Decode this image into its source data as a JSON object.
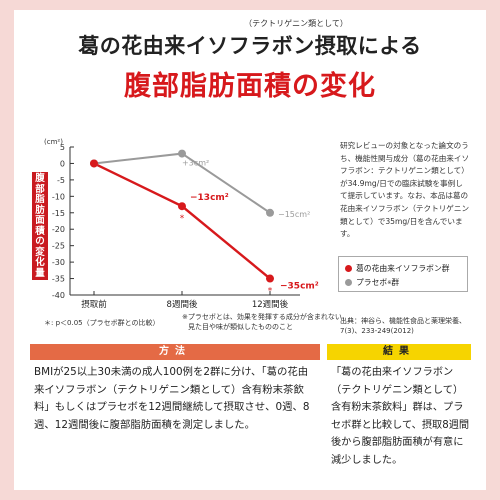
{
  "header": {
    "ruby": "（テクトリゲニン類として）",
    "title": "葛の花由来イソフラボン摂取による",
    "subtitle": "腹部脂肪面積の変化"
  },
  "chart_data": {
    "type": "line",
    "y_axis_title": "腹部脂肪面積の変化量",
    "y_unit": "(cm²)",
    "ylim": [
      -40,
      5
    ],
    "yticks": [
      5,
      0,
      -5,
      -10,
      -15,
      -20,
      -25,
      -30,
      -35,
      -40
    ],
    "categories": [
      "摂取前",
      "8週間後",
      "12週間後"
    ],
    "series": [
      {
        "name": "葛の花由来イソフラボン群",
        "color": "#d7191c",
        "values": [
          0,
          -13,
          -35
        ],
        "labels": [
          "",
          "−13cm²",
          "−35cm²"
        ],
        "markers": [
          "",
          "*",
          "*"
        ]
      },
      {
        "name": "プラセボ群",
        "color": "#9a9a9a",
        "values": [
          0,
          3,
          -15
        ],
        "labels": [
          "",
          "+3cm²",
          "−15cm²"
        ],
        "markers": [
          "",
          "",
          ""
        ]
      }
    ],
    "legend_position": "below-text",
    "grid": false
  },
  "footnotes": {
    "significance": "＊: p＜0.05（プラセボ群との比較）",
    "placebo_note_1": "※プラセボとは、効果を発揮する成分が含まれない、",
    "placebo_note_2": "見た目や味が類似したもののこと"
  },
  "side_text": "研究レビューの対象となった論文のうち、機能性関与成分（葛の花由来イソフラボン：テクトリゲニン類として）が34.9mg/日での臨床試験を事例して提示しています。なお、本品は葛の花由来イソフラボン（テクトリゲニン類として）で35mg/日を含んでいます。",
  "legend": {
    "item1": "葛の花由来イソフラボン群",
    "item2": "プラセボ",
    "item2_suffix": "群"
  },
  "source": {
    "line1": "出典：神谷ら、機能性食品と薬理栄養、",
    "line2": "7(3)、233-249(2012)"
  },
  "method": {
    "heading": "方法",
    "text": "BMIが25以上30未満の成人100例を2群に分け、「葛の花由来イソフラボン（テクトリゲニン類として）含有粉末茶飲料」もしくはプラセボを12週間継続して摂取させ、0週、8週、12週間後に腹部脂肪面積を測定しました。"
  },
  "result": {
    "heading": "結果",
    "text": "「葛の花由来イソフラボン（テクトリゲニン類として）含有粉末茶飲料」群は、プラセボ群と比較して、摂取8週間後から腹部脂肪面積が有意に減少しました。"
  }
}
